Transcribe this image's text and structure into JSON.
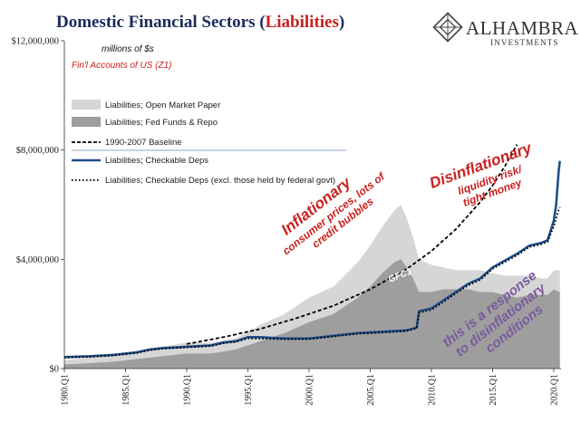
{
  "title": {
    "main": "Domestic Financial Sectors (",
    "highlight": "Liabilities",
    "close": ")"
  },
  "logo": {
    "name": "ALHAMBRA",
    "sub": "INVESTMENTS"
  },
  "units_note": "millions of $s",
  "source_note": "Fin'l Accounts of US (Z1)",
  "colors": {
    "title_navy": "#1a2a5c",
    "title_red": "#cc1f1f",
    "annotation_red": "#cc1f1f",
    "annotation_purple": "#7a5a9e",
    "open_market": "#d6d6d6",
    "fed_funds": "#9e9e9e",
    "baseline": "#000000",
    "checkable": "#1f4e8c",
    "checkable_excl": "#000000"
  },
  "annotations": {
    "inflationary": "Inflationary",
    "inflationary_sub1": "consumer prices, lots of",
    "inflationary_sub2": "credit bubbles",
    "disinflationary": "Disinflationary",
    "disinflationary_sub1": "liquidity risk/",
    "disinflationary_sub2": "tight money",
    "gfc": "GFC1",
    "response1": "this is a response",
    "response2": "to disinflationary",
    "response3": "conditions"
  },
  "chart_data": {
    "type": "area",
    "title": "Domestic Financial Sectors (Liabilities)",
    "ylim": [
      0,
      12000000
    ],
    "xlim": [
      1980.0,
      2020.6
    ],
    "yticks": [
      {
        "v": 0,
        "label": "$0"
      },
      {
        "v": 4000000,
        "label": "$4,000,000"
      },
      {
        "v": 8000000,
        "label": "$8,000,000"
      },
      {
        "v": 12000000,
        "label": "$12,000,000"
      }
    ],
    "xticks": [
      {
        "v": 1980,
        "label": "1980.Q1"
      },
      {
        "v": 1985,
        "label": "1985.Q1"
      },
      {
        "v": 1990,
        "label": "1990.Q1"
      },
      {
        "v": 1995,
        "label": "1995.Q1"
      },
      {
        "v": 2000,
        "label": "2000.Q1"
      },
      {
        "v": 2005,
        "label": "2005.Q1"
      },
      {
        "v": 2010,
        "label": "2010.Q1"
      },
      {
        "v": 2015,
        "label": "2015.Q1"
      },
      {
        "v": 2020,
        "label": "2020.Q1"
      }
    ],
    "legend": [
      "Liabilities; Open Market Paper",
      "Liabilities; Fed Funds & Repo",
      "1990-2007 Baseline",
      "Liabilities; Checkable Deps",
      "Liabilities; Checkable Deps (excl. those held by federal govt)"
    ],
    "series": [
      {
        "name": "Liabilities; Open Market Paper",
        "kind": "area",
        "x": [
          1980,
          1982,
          1984,
          1986,
          1988,
          1990,
          1992,
          1994,
          1996,
          1998,
          2000,
          2002,
          2004,
          2005,
          2006,
          2007,
          2007.5,
          2008,
          2008.5,
          2009,
          2010,
          2011,
          2012,
          2013,
          2014,
          2015,
          2016,
          2017,
          2018,
          2019,
          2019.5,
          2020,
          2020.5
        ],
        "y": [
          300000,
          400000,
          500000,
          650000,
          800000,
          950000,
          950000,
          1100000,
          1600000,
          2000000,
          2600000,
          3000000,
          3900000,
          4500000,
          5200000,
          5800000,
          6000000,
          5500000,
          4800000,
          4000000,
          3800000,
          3700000,
          3600000,
          3600000,
          3600000,
          3500000,
          3400000,
          3400000,
          3400000,
          3300000,
          3300000,
          3600000,
          3600000
        ]
      },
      {
        "name": "Liabilities; Fed Funds & Repo",
        "kind": "area",
        "x": [
          1980,
          1982,
          1984,
          1986,
          1988,
          1990,
          1992,
          1994,
          1996,
          1998,
          2000,
          2002,
          2004,
          2005,
          2006,
          2007,
          2007.5,
          2008,
          2008.5,
          2009,
          2010,
          2011,
          2012,
          2013,
          2014,
          2015,
          2016,
          2017,
          2018,
          2019,
          2019.5,
          2020,
          2020.5
        ],
        "y": [
          150000,
          200000,
          250000,
          350000,
          450000,
          550000,
          550000,
          700000,
          1000000,
          1300000,
          1700000,
          2000000,
          2600000,
          3000000,
          3500000,
          3900000,
          4000000,
          3700000,
          3300000,
          2800000,
          2800000,
          2900000,
          2900000,
          2900000,
          2800000,
          2800000,
          2700000,
          2600000,
          2700000,
          2700000,
          2700000,
          2900000,
          2800000
        ]
      },
      {
        "name": "1990-2007 Baseline",
        "kind": "line",
        "style": "dashed",
        "x": [
          1990,
          1993,
          1996,
          1999,
          2002,
          2005,
          2008,
          2010,
          2012,
          2014,
          2015,
          2016,
          2017
        ],
        "y": [
          900000,
          1150000,
          1450000,
          1850000,
          2300000,
          2900000,
          3650000,
          4300000,
          5100000,
          6100000,
          6700000,
          7400000,
          8200000
        ]
      },
      {
        "name": "Liabilities; Checkable Deps",
        "kind": "line",
        "style": "solid",
        "x": [
          1980,
          1982,
          1984,
          1986,
          1987,
          1988,
          1990,
          1992,
          1993,
          1994,
          1995,
          1996,
          1998,
          2000,
          2002,
          2004,
          2006,
          2008,
          2008.8,
          2009,
          2010,
          2011,
          2012,
          2013,
          2014,
          2015,
          2016,
          2017,
          2018,
          2019,
          2019.5,
          2020,
          2020.2,
          2020.4,
          2020.5
        ],
        "y": [
          420000,
          450000,
          500000,
          600000,
          700000,
          750000,
          800000,
          850000,
          950000,
          1000000,
          1150000,
          1150000,
          1100000,
          1100000,
          1200000,
          1300000,
          1350000,
          1400000,
          1500000,
          2100000,
          2200000,
          2500000,
          2800000,
          3100000,
          3300000,
          3700000,
          3950000,
          4200000,
          4500000,
          4600000,
          4700000,
          5400000,
          6000000,
          7200000,
          7600000
        ]
      },
      {
        "name": "Liabilities; Checkable Deps (excl. those held by federal govt)",
        "kind": "line",
        "style": "dotted",
        "x": [
          1980,
          1982,
          1984,
          1986,
          1987,
          1988,
          1990,
          1992,
          1993,
          1994,
          1995,
          1996,
          1998,
          2000,
          2002,
          2004,
          2006,
          2008,
          2008.8,
          2009,
          2010,
          2011,
          2012,
          2013,
          2014,
          2015,
          2016,
          2017,
          2018,
          2019,
          2019.5,
          2020,
          2020.2,
          2020.4,
          2020.5
        ],
        "y": [
          400000,
          430000,
          480000,
          580000,
          680000,
          730000,
          780000,
          830000,
          930000,
          980000,
          1100000,
          1100000,
          1080000,
          1080000,
          1180000,
          1280000,
          1320000,
          1380000,
          1480000,
          2050000,
          2150000,
          2450000,
          2750000,
          3050000,
          3250000,
          3650000,
          3900000,
          4150000,
          4450000,
          4550000,
          4650000,
          5200000,
          5500000,
          5800000,
          5900000
        ]
      }
    ]
  }
}
